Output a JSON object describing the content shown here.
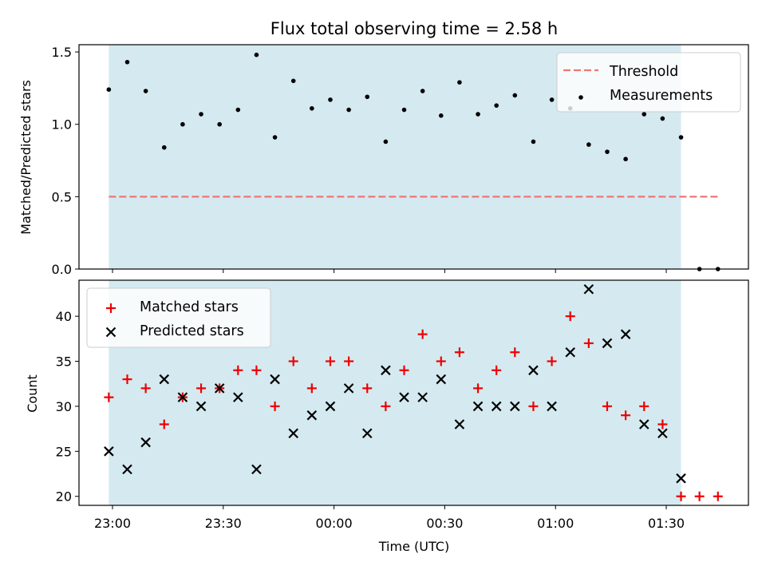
{
  "chart_data": {
    "title": "Flux total observing time = 2.58 h",
    "xlabel": "Time (UTC)",
    "x_ticks": [
      "23:00",
      "23:30",
      "00:00",
      "00:30",
      "01:00",
      "01:30"
    ],
    "colors": {
      "observing_span": "#d4eaf0",
      "threshold": "#f07575",
      "measurements": "#000000",
      "matched": "#ee0000",
      "predicted": "#000000"
    },
    "observing_span": {
      "start": "22:59",
      "end": "01:34"
    },
    "panels": [
      {
        "type": "scatter",
        "ylabel": "Matched/Predicted stars",
        "ylim": [
          0,
          1.55
        ],
        "y_ticks": [
          "0.0",
          "0.5",
          "1.0",
          "1.5"
        ],
        "legend_position": "upper right",
        "threshold": {
          "name": "Threshold",
          "value": 0.5,
          "x_start": "22:59",
          "x_end": "01:44"
        },
        "series": [
          {
            "name": "Measurements",
            "x": [
              "22:59",
              "23:04",
              "23:09",
              "23:14",
              "23:19",
              "23:24",
              "23:29",
              "23:34",
              "23:39",
              "23:44",
              "23:49",
              "23:54",
              "23:59",
              "00:04",
              "00:09",
              "00:14",
              "00:19",
              "00:24",
              "00:29",
              "00:34",
              "00:39",
              "00:44",
              "00:49",
              "00:54",
              "00:59",
              "01:04",
              "01:09",
              "01:14",
              "01:19",
              "01:24",
              "01:29",
              "01:34",
              "01:39",
              "01:44"
            ],
            "y": [
              1.24,
              1.43,
              1.23,
              0.84,
              1.0,
              1.07,
              1.0,
              1.1,
              1.48,
              0.91,
              1.3,
              1.11,
              1.17,
              1.1,
              1.19,
              0.88,
              1.1,
              1.23,
              1.06,
              1.29,
              1.07,
              1.13,
              1.2,
              0.88,
              1.17,
              1.11,
              0.86,
              0.81,
              0.76,
              1.07,
              1.04,
              0.91,
              0.0,
              0.0
            ]
          }
        ]
      },
      {
        "type": "scatter",
        "ylabel": "Count",
        "ylim": [
          19,
          44
        ],
        "y_ticks": [
          "20",
          "25",
          "30",
          "35",
          "40"
        ],
        "legend_position": "upper left",
        "series": [
          {
            "name": "Matched stars",
            "marker": "+",
            "x": [
              "22:59",
              "23:04",
              "23:09",
              "23:14",
              "23:19",
              "23:24",
              "23:29",
              "23:34",
              "23:39",
              "23:44",
              "23:49",
              "23:54",
              "23:59",
              "00:04",
              "00:09",
              "00:14",
              "00:19",
              "00:24",
              "00:29",
              "00:34",
              "00:39",
              "00:44",
              "00:49",
              "00:54",
              "00:59",
              "01:04",
              "01:09",
              "01:14",
              "01:19",
              "01:24",
              "01:29",
              "01:34",
              "01:39",
              "01:44"
            ],
            "y": [
              31,
              33,
              32,
              28,
              31,
              32,
              32,
              34,
              34,
              30,
              35,
              32,
              35,
              35,
              32,
              30,
              34,
              38,
              35,
              36,
              32,
              34,
              36,
              30,
              35,
              40,
              37,
              30,
              29,
              30,
              28,
              20,
              20,
              20
            ]
          },
          {
            "name": "Predicted stars",
            "marker": "x",
            "x": [
              "22:59",
              "23:04",
              "23:09",
              "23:14",
              "23:19",
              "23:24",
              "23:29",
              "23:34",
              "23:39",
              "23:44",
              "23:49",
              "23:54",
              "23:59",
              "00:04",
              "00:09",
              "00:14",
              "00:19",
              "00:24",
              "00:29",
              "00:34",
              "00:39",
              "00:44",
              "00:49",
              "00:54",
              "00:59",
              "01:04",
              "01:09",
              "01:14",
              "01:19",
              "01:24",
              "01:29",
              "01:34"
            ],
            "y": [
              25,
              23,
              26,
              33,
              31,
              30,
              32,
              31,
              23,
              33,
              27,
              29,
              30,
              32,
              27,
              34,
              31,
              31,
              33,
              28,
              30,
              30,
              30,
              34,
              30,
              36,
              43,
              37,
              38,
              28,
              27,
              22
            ]
          }
        ]
      }
    ]
  }
}
